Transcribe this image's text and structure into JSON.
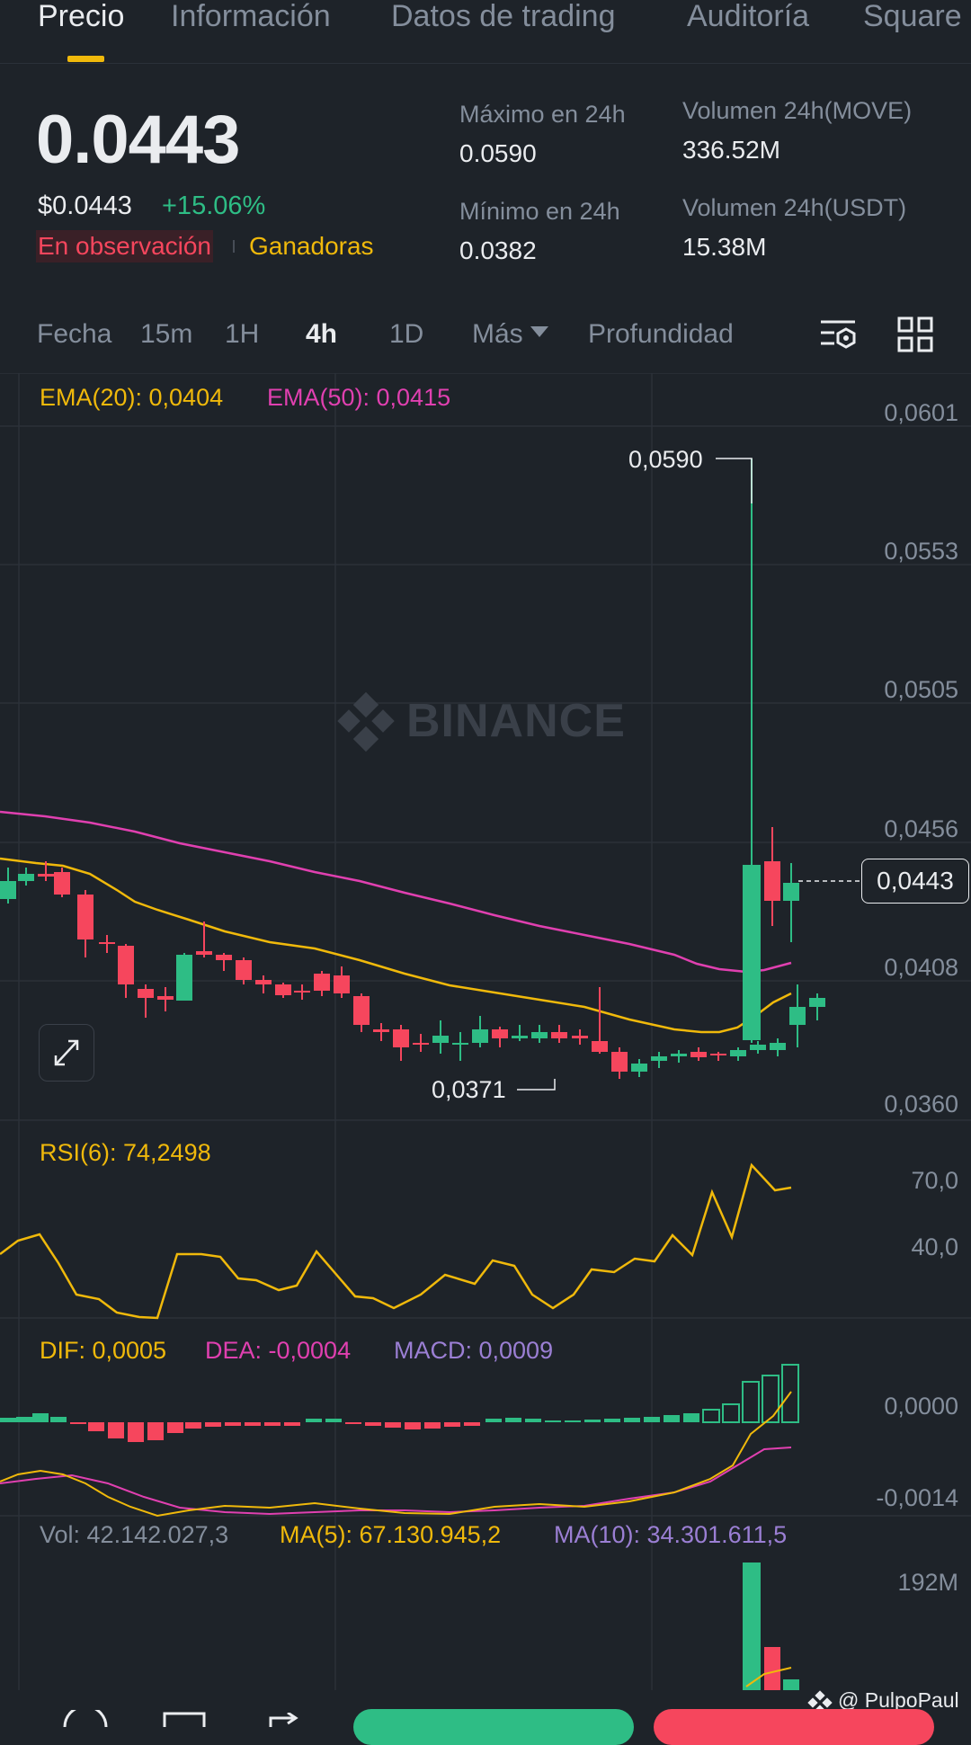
{
  "tabs": [
    {
      "label": "Precio",
      "active": true
    },
    {
      "label": "Información"
    },
    {
      "label": "Datos de trading"
    },
    {
      "label": "Auditoría"
    },
    {
      "label": "Square"
    }
  ],
  "price": {
    "last": "0.0443",
    "usd": "$0.0443",
    "change": "+15.06%",
    "tag_watch": "En observación",
    "tag_gainers": "Ganadoras"
  },
  "stats": {
    "high_label": "Máximo en 24h",
    "high_value": "0.0590",
    "low_label": "Mínimo en 24h",
    "low_value": "0.0382",
    "vol_base_label": "Volumen 24h(MOVE)",
    "vol_base_value": "336.52M",
    "vol_quote_label": "Volumen 24h(USDT)",
    "vol_quote_value": "15.38M"
  },
  "timeframes": {
    "date": "Fecha",
    "m15": "15m",
    "h1": "1H",
    "h4": "4h",
    "d1": "1D",
    "more": "Más",
    "depth": "Profundidad",
    "active": "4h"
  },
  "indicators": {
    "ema20": "EMA(20): 0,0404",
    "ema50": "EMA(50): 0,0415",
    "rsi": "RSI(6): 74,2498",
    "dif": "DIF: 0,0005",
    "dea": "DEA: -0,0004",
    "macd": "MACD: 0,0009",
    "vol": "Vol: 42.142.027,3",
    "ma5": "MA(5): 67.130.945,2",
    "ma10": "MA(10): 34.301.611,5"
  },
  "axis": {
    "price_ticks": [
      "0,0601",
      "0,0553",
      "0,0505",
      "0,0456",
      "0,0408",
      "0,0360"
    ],
    "rsi_ticks": [
      "70,0",
      "40,0"
    ],
    "macd_ticks": [
      "0,0000",
      "-0,0014"
    ],
    "vol_ticks": [
      "192M"
    ]
  },
  "chart_marks": {
    "current_price": "0,0443",
    "high_mark": "0,0590",
    "low_mark": "0,0371"
  },
  "watermark": "BINANCE",
  "credit": "@ PulpoPaul",
  "colors": {
    "background": "#1e2329",
    "up": "#2ebd85",
    "down": "#f6465d",
    "accent": "#f0b90b",
    "ema50": "#e040b0",
    "macd_label": "#9b7fd4"
  },
  "icons": [
    "chart-settings-icon",
    "layout-grid-icon",
    "expand-icon",
    "binance-logo-icon"
  ]
}
